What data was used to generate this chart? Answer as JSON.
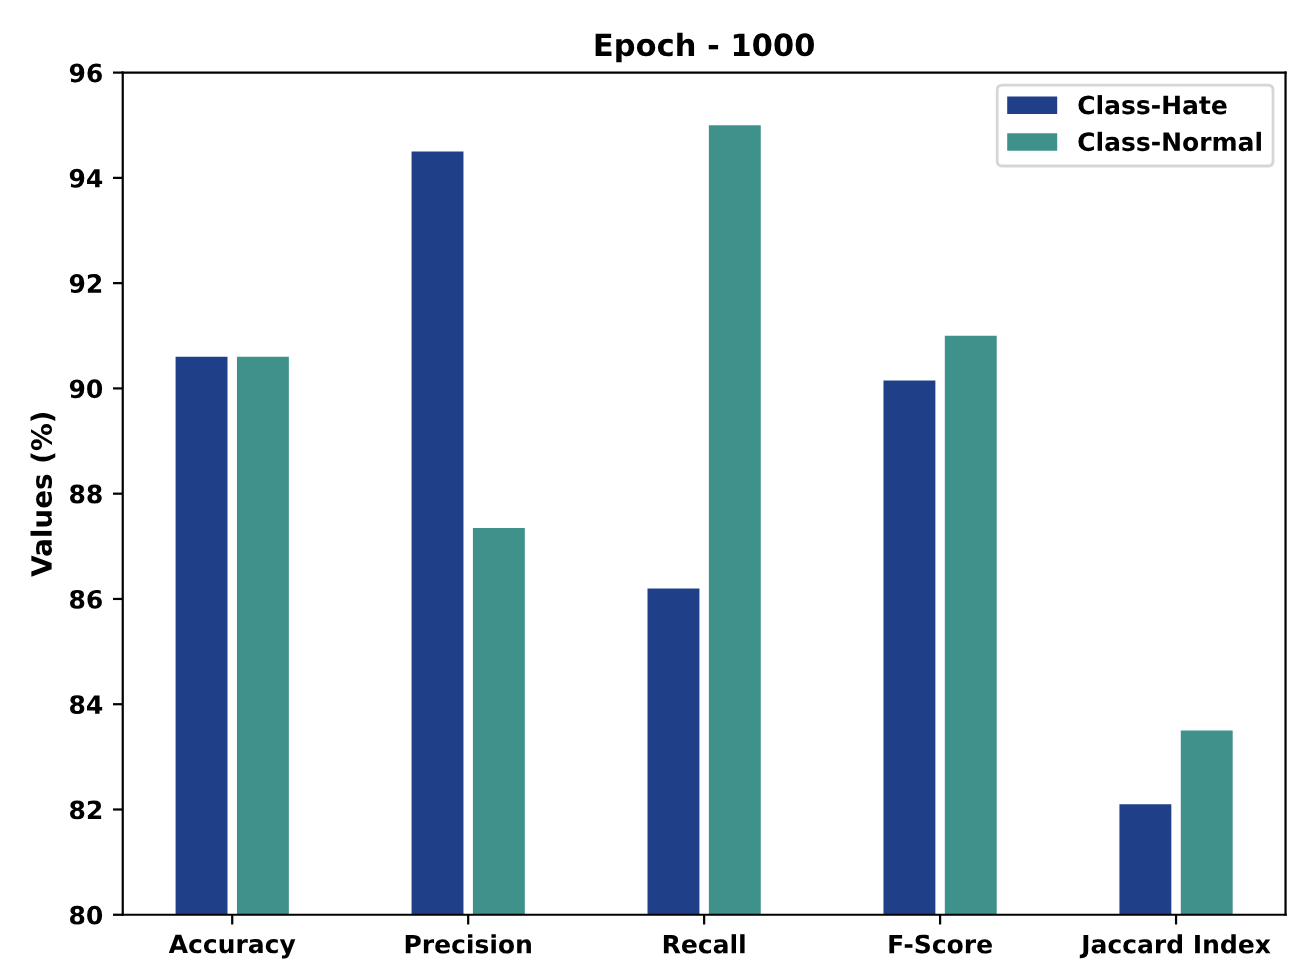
{
  "chart_data": {
    "type": "bar",
    "title": "Epoch - 1000",
    "ylabel": "Values (%)",
    "categories": [
      "Accuracy",
      "Precision",
      "Recall",
      "F-Score",
      "Jaccard Index"
    ],
    "series": [
      {
        "name": "Class-Hate",
        "color": "#1f4088",
        "values": [
          90.6,
          94.5,
          86.2,
          90.15,
          82.1
        ]
      },
      {
        "name": "Class-Normal",
        "color": "#3f918b",
        "values": [
          90.6,
          87.35,
          95.0,
          91.0,
          83.5
        ]
      }
    ],
    "ylim": [
      80,
      96
    ],
    "yticks": [
      80,
      82,
      84,
      86,
      88,
      90,
      92,
      94,
      96
    ],
    "grid": false,
    "legend": "top right"
  }
}
